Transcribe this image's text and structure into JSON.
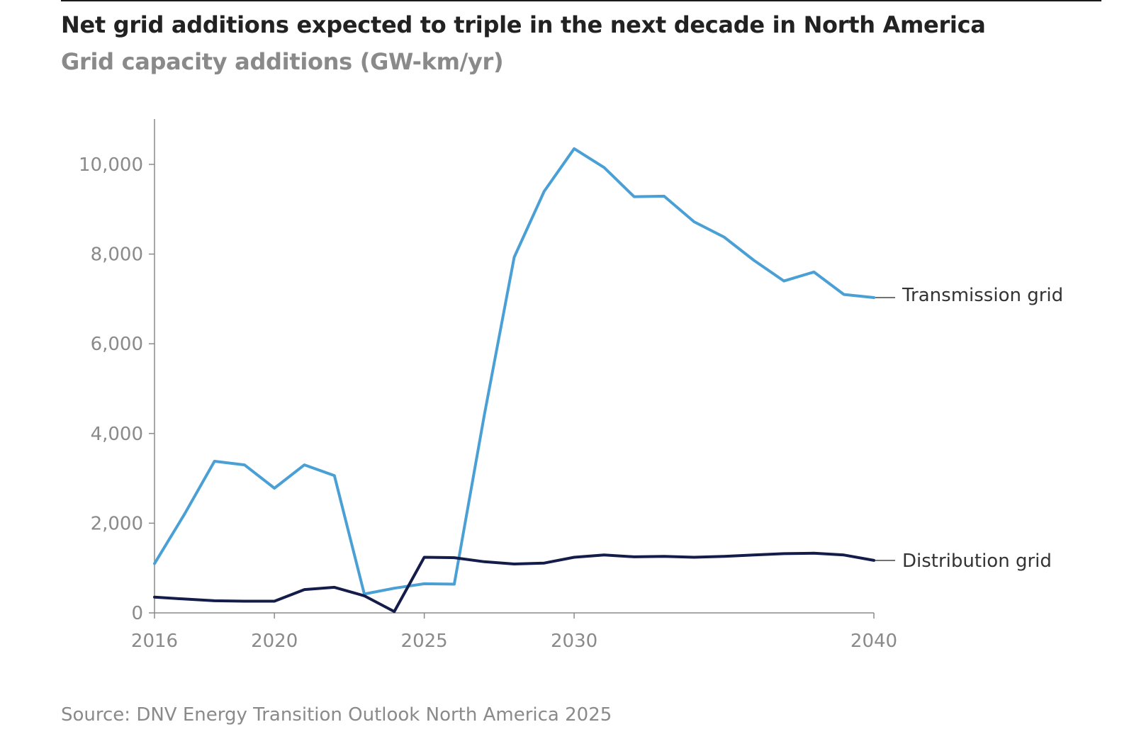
{
  "header": {
    "title": "Net grid additions expected to triple in the next decade in North America",
    "subtitle": "Grid capacity additions (GW-km/yr)"
  },
  "footer": {
    "source": "Source: DNV Energy Transition Outlook North America 2025"
  },
  "colors": {
    "transmission": "#4aa0d5",
    "distribution": "#141c4a",
    "axis": "#8a8a8a",
    "leader": "#444444"
  },
  "chart_data": {
    "type": "line",
    "title": "Net grid additions expected to triple in the next decade in North America",
    "subtitle": "Grid capacity additions (GW-km/yr)",
    "xlabel": "",
    "ylabel": "",
    "xlim": [
      2016,
      2040
    ],
    "ylim": [
      0,
      11000
    ],
    "x_ticks": [
      2016,
      2020,
      2025,
      2030,
      2040
    ],
    "x_tick_labels": [
      "2016",
      "2020",
      "2025",
      "2030",
      "2040"
    ],
    "y_ticks": [
      0,
      2000,
      4000,
      6000,
      8000,
      10000
    ],
    "y_tick_labels": [
      "0",
      "2,000",
      "4,000",
      "6,000",
      "8,000",
      "10,000"
    ],
    "grid": false,
    "legend": "direct labels at line ends",
    "x": [
      2016,
      2017,
      2018,
      2019,
      2020,
      2021,
      2022,
      2023,
      2024,
      2025,
      2026,
      2027,
      2028,
      2029,
      2030,
      2031,
      2032,
      2033,
      2034,
      2035,
      2036,
      2037,
      2038,
      2039,
      2040
    ],
    "series": [
      {
        "name": "Transmission grid",
        "values": [
          1100,
          2200,
          3380,
          3300,
          2780,
          3300,
          3060,
          420,
          550,
          650,
          640,
          4400,
          7930,
          9400,
          10350,
          9930,
          9280,
          9290,
          8720,
          8380,
          7860,
          7400,
          7600,
          7100,
          7030
        ]
      },
      {
        "name": "Distribution grid",
        "values": [
          350,
          310,
          270,
          260,
          260,
          520,
          570,
          380,
          30,
          1240,
          1230,
          1140,
          1090,
          1110,
          1240,
          1290,
          1250,
          1260,
          1240,
          1260,
          1290,
          1320,
          1330,
          1290,
          1170
        ]
      }
    ],
    "source": "Source: DNV Energy Transition Outlook North America 2025"
  }
}
